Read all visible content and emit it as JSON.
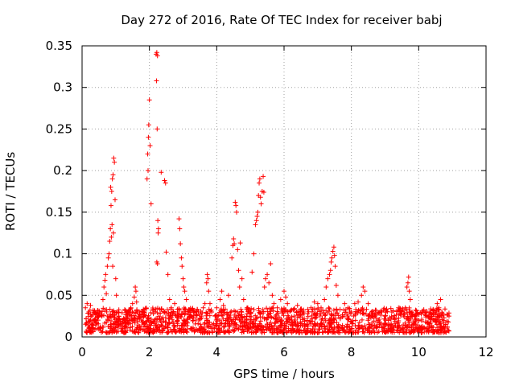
{
  "chart_data": {
    "type": "scatter",
    "title": "Day 272 of 2016, Rate Of TEC Index for receiver babj",
    "xlabel": "GPS time / hours",
    "ylabel": "ROTI / TECUs",
    "xlim": [
      0,
      12
    ],
    "ylim": [
      0,
      0.35
    ],
    "xticks": [
      0,
      2,
      4,
      6,
      8,
      10,
      12
    ],
    "xtick_labels": [
      "0",
      "2",
      "4",
      "6",
      "8",
      "10",
      "12"
    ],
    "yticks": [
      0,
      0.05,
      0.1,
      0.15,
      0.2,
      0.25,
      0.3,
      0.35
    ],
    "ytick_labels": [
      "0",
      "0.05",
      "0.1",
      "0.15",
      "0.2",
      "0.25",
      "0.3",
      "0.35"
    ],
    "grid": true,
    "marker": "+",
    "color": "#ff0000",
    "series": [
      {
        "name": "ROTI",
        "points": [
          [
            0.1,
            0.035
          ],
          [
            0.12,
            0.022
          ],
          [
            0.15,
            0.04
          ],
          [
            0.18,
            0.018
          ],
          [
            0.2,
            0.03
          ],
          [
            0.22,
            0.012
          ],
          [
            0.25,
            0.038
          ],
          [
            0.28,
            0.025
          ],
          [
            0.3,
            0.015
          ],
          [
            0.33,
            0.032
          ],
          [
            0.36,
            0.02
          ],
          [
            0.4,
            0.028
          ],
          [
            0.45,
            0.01
          ],
          [
            0.48,
            0.024
          ],
          [
            0.55,
            0.012
          ],
          [
            0.62,
            0.045
          ],
          [
            0.65,
            0.06
          ],
          [
            0.68,
            0.068
          ],
          [
            0.7,
            0.075
          ],
          [
            0.72,
            0.052
          ],
          [
            0.75,
            0.085
          ],
          [
            0.78,
            0.095
          ],
          [
            0.8,
            0.1
          ],
          [
            0.82,
            0.115
          ],
          [
            0.84,
            0.13
          ],
          [
            0.86,
            0.158
          ],
          [
            0.88,
            0.175
          ],
          [
            0.9,
            0.19
          ],
          [
            0.92,
            0.195
          ],
          [
            0.94,
            0.215
          ],
          [
            0.96,
            0.21
          ],
          [
            0.98,
            0.165
          ],
          [
            1.0,
            0.07
          ],
          [
            1.02,
            0.05
          ],
          [
            1.05,
            0.03
          ],
          [
            1.1,
            0.015
          ],
          [
            0.85,
            0.18
          ],
          [
            0.87,
            0.12
          ],
          [
            0.89,
            0.135
          ],
          [
            0.91,
            0.085
          ],
          [
            0.93,
            0.125
          ],
          [
            1.2,
            0.012
          ],
          [
            1.3,
            0.018
          ],
          [
            1.35,
            0.028
          ],
          [
            1.4,
            0.02
          ],
          [
            1.45,
            0.035
          ],
          [
            1.5,
            0.04
          ],
          [
            1.55,
            0.048
          ],
          [
            1.58,
            0.06
          ],
          [
            1.6,
            0.055
          ],
          [
            1.62,
            0.042
          ],
          [
            1.65,
            0.03
          ],
          [
            1.7,
            0.022
          ],
          [
            1.8,
            0.018
          ],
          [
            1.85,
            0.03
          ],
          [
            1.93,
            0.19
          ],
          [
            1.95,
            0.22
          ],
          [
            1.97,
            0.24
          ],
          [
            1.98,
            0.255
          ],
          [
            2.0,
            0.285
          ],
          [
            2.02,
            0.23
          ],
          [
            1.96,
            0.2
          ],
          [
            2.05,
            0.16
          ],
          [
            2.2,
            0.34
          ],
          [
            2.22,
            0.342
          ],
          [
            2.24,
            0.338
          ],
          [
            2.21,
            0.308
          ],
          [
            2.23,
            0.25
          ],
          [
            2.25,
            0.14
          ],
          [
            2.27,
            0.13
          ],
          [
            2.26,
            0.125
          ],
          [
            2.22,
            0.09
          ],
          [
            2.24,
            0.088
          ],
          [
            2.35,
            0.198
          ],
          [
            2.45,
            0.188
          ],
          [
            2.48,
            0.185
          ],
          [
            2.5,
            0.102
          ],
          [
            2.55,
            0.075
          ],
          [
            2.6,
            0.045
          ],
          [
            2.65,
            0.035
          ],
          [
            2.7,
            0.03
          ],
          [
            2.75,
            0.04
          ],
          [
            2.88,
            0.142
          ],
          [
            2.9,
            0.13
          ],
          [
            2.92,
            0.112
          ],
          [
            2.95,
            0.095
          ],
          [
            2.97,
            0.085
          ],
          [
            3.0,
            0.07
          ],
          [
            3.02,
            0.06
          ],
          [
            3.05,
            0.055
          ],
          [
            3.1,
            0.045
          ],
          [
            3.2,
            0.025
          ],
          [
            3.3,
            0.02
          ],
          [
            3.4,
            0.03
          ],
          [
            3.5,
            0.022
          ],
          [
            3.6,
            0.035
          ],
          [
            3.65,
            0.04
          ],
          [
            3.7,
            0.065
          ],
          [
            3.72,
            0.075
          ],
          [
            3.74,
            0.07
          ],
          [
            3.76,
            0.055
          ],
          [
            3.8,
            0.04
          ],
          [
            3.85,
            0.03
          ],
          [
            3.95,
            0.025
          ],
          [
            4.0,
            0.035
          ],
          [
            4.1,
            0.045
          ],
          [
            4.15,
            0.055
          ],
          [
            4.2,
            0.038
          ],
          [
            4.3,
            0.028
          ],
          [
            4.35,
            0.05
          ],
          [
            4.45,
            0.095
          ],
          [
            4.48,
            0.11
          ],
          [
            4.5,
            0.118
          ],
          [
            4.52,
            0.112
          ],
          [
            4.55,
            0.162
          ],
          [
            4.57,
            0.158
          ],
          [
            4.59,
            0.15
          ],
          [
            4.62,
            0.105
          ],
          [
            4.65,
            0.08
          ],
          [
            4.68,
            0.06
          ],
          [
            4.7,
            0.113
          ],
          [
            4.75,
            0.07
          ],
          [
            4.8,
            0.045
          ],
          [
            4.9,
            0.035
          ],
          [
            5.05,
            0.078
          ],
          [
            5.1,
            0.1
          ],
          [
            5.15,
            0.135
          ],
          [
            5.18,
            0.14
          ],
          [
            5.2,
            0.145
          ],
          [
            5.22,
            0.15
          ],
          [
            5.24,
            0.17
          ],
          [
            5.26,
            0.185
          ],
          [
            5.28,
            0.19
          ],
          [
            5.3,
            0.168
          ],
          [
            5.32,
            0.16
          ],
          [
            5.35,
            0.175
          ],
          [
            5.38,
            0.193
          ],
          [
            5.4,
            0.174
          ],
          [
            5.42,
            0.06
          ],
          [
            5.45,
            0.07
          ],
          [
            5.5,
            0.075
          ],
          [
            5.55,
            0.065
          ],
          [
            5.6,
            0.088
          ],
          [
            5.65,
            0.05
          ],
          [
            5.7,
            0.04
          ],
          [
            5.8,
            0.035
          ],
          [
            5.9,
            0.045
          ],
          [
            6.0,
            0.055
          ],
          [
            6.05,
            0.048
          ],
          [
            6.1,
            0.04
          ],
          [
            6.2,
            0.032
          ],
          [
            6.3,
            0.025
          ],
          [
            6.4,
            0.038
          ],
          [
            6.5,
            0.03
          ],
          [
            6.6,
            0.022
          ],
          [
            6.7,
            0.028
          ],
          [
            6.8,
            0.035
          ],
          [
            6.9,
            0.042
          ],
          [
            7.0,
            0.04
          ],
          [
            7.1,
            0.035
          ],
          [
            7.2,
            0.045
          ],
          [
            7.25,
            0.06
          ],
          [
            7.3,
            0.07
          ],
          [
            7.35,
            0.075
          ],
          [
            7.38,
            0.08
          ],
          [
            7.4,
            0.09
          ],
          [
            7.42,
            0.095
          ],
          [
            7.45,
            0.103
          ],
          [
            7.48,
            0.108
          ],
          [
            7.5,
            0.098
          ],
          [
            7.52,
            0.085
          ],
          [
            7.55,
            0.062
          ],
          [
            7.6,
            0.05
          ],
          [
            7.8,
            0.04
          ],
          [
            7.9,
            0.035
          ],
          [
            8.0,
            0.03
          ],
          [
            8.1,
            0.04
          ],
          [
            8.2,
            0.042
          ],
          [
            8.3,
            0.05
          ],
          [
            8.35,
            0.06
          ],
          [
            8.4,
            0.055
          ],
          [
            8.5,
            0.04
          ],
          [
            8.6,
            0.03
          ],
          [
            8.7,
            0.025
          ],
          [
            8.8,
            0.02
          ],
          [
            8.9,
            0.03
          ],
          [
            9.0,
            0.025
          ],
          [
            9.1,
            0.02
          ],
          [
            9.2,
            0.03
          ],
          [
            9.3,
            0.022
          ],
          [
            9.4,
            0.035
          ],
          [
            9.5,
            0.03
          ],
          [
            9.6,
            0.035
          ],
          [
            9.65,
            0.06
          ],
          [
            9.68,
            0.065
          ],
          [
            9.7,
            0.072
          ],
          [
            9.72,
            0.055
          ],
          [
            9.75,
            0.045
          ],
          [
            9.8,
            0.03
          ],
          [
            9.9,
            0.025
          ],
          [
            10.0,
            0.02
          ],
          [
            10.1,
            0.03
          ],
          [
            10.2,
            0.018
          ],
          [
            10.3,
            0.025
          ],
          [
            10.4,
            0.022
          ],
          [
            10.5,
            0.03
          ],
          [
            10.55,
            0.04
          ],
          [
            10.6,
            0.035
          ],
          [
            10.65,
            0.045
          ],
          [
            10.7,
            0.028
          ],
          [
            10.75,
            0.02
          ],
          [
            10.8,
            0.015
          ],
          [
            10.85,
            0.012
          ],
          [
            10.88,
            0.018
          ],
          [
            10.9,
            0.025
          ]
        ]
      }
    ],
    "band": {
      "description": "dense low-level scatter",
      "x_range": [
        0.1,
        10.9
      ],
      "y_range": [
        0.005,
        0.035
      ],
      "count": 1600
    }
  }
}
